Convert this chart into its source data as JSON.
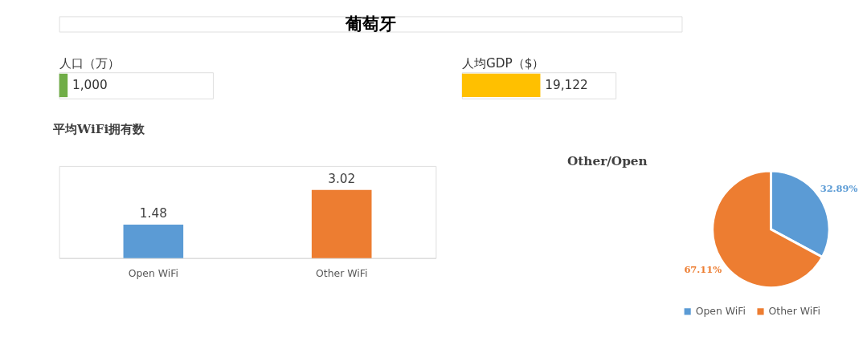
{
  "chart_data": [
    {
      "type": "other",
      "title": "葡萄牙"
    },
    {
      "type": "bar",
      "orientation": "horizontal",
      "categories": [
        "人口（万）"
      ],
      "values": [
        1000
      ],
      "value_labels": [
        "1,000"
      ],
      "colors": [
        "#70ad47"
      ]
    },
    {
      "type": "bar",
      "orientation": "horizontal",
      "categories": [
        "人均GDP（$）"
      ],
      "values": [
        19122
      ],
      "value_labels": [
        "19,122"
      ],
      "colors": [
        "#ffc000"
      ]
    },
    {
      "type": "bar",
      "title": "平均WiFi拥有数",
      "categories": [
        "Open WiFi",
        "Other WiFi"
      ],
      "values": [
        1.48,
        3.02
      ],
      "colors": [
        "#5b9bd5",
        "#ed7d31"
      ],
      "data_labels": true
    },
    {
      "type": "pie",
      "title": "Other/Open",
      "categories": [
        "Open WiFi",
        "Other WiFi"
      ],
      "values": [
        32.89,
        67.11
      ],
      "value_labels": [
        "32.89%",
        "67.11%"
      ],
      "colors": [
        "#5b9bd5",
        "#ed7d31"
      ],
      "legend": "bottom"
    }
  ]
}
